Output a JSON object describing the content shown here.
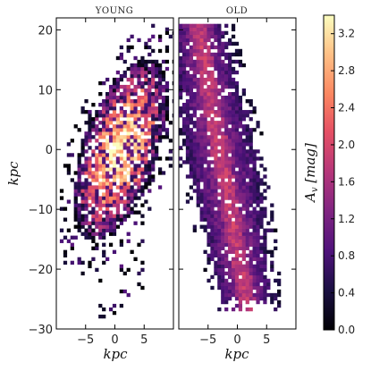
{
  "chart_data": {
    "type": "heatmap",
    "panels": [
      {
        "title": "YOUNG",
        "xlabel": "kpc",
        "ylabel": "kpc",
        "xlim": [
          -10,
          10
        ],
        "ylim": [
          -30,
          22
        ],
        "xticks": [
          -5,
          0,
          5
        ],
        "yticks": [
          -30,
          -20,
          -10,
          0,
          10,
          20
        ],
        "xtick_labels": [
          "−5",
          "0",
          "5"
        ],
        "ytick_labels": [
          "−30",
          "−20",
          "−10",
          "0",
          "10",
          "20"
        ],
        "value_range_approx": [
          0.2,
          3.4
        ]
      },
      {
        "title": "OLD",
        "xlabel": "kpc",
        "xlim": [
          -10,
          10
        ],
        "ylim": [
          -30,
          22
        ],
        "xticks": [
          -5,
          0,
          5
        ],
        "xtick_labels": [
          "−5",
          "0",
          "5"
        ],
        "value_range_approx": [
          0.2,
          1.8
        ]
      }
    ],
    "colorbar": {
      "label": "A_v [mag]",
      "label_text": "Av [mag]",
      "colormap": "magma",
      "range": [
        0.0,
        3.4
      ],
      "ticks": [
        0.0,
        0.4,
        0.8,
        1.2,
        1.6,
        2.0,
        2.4,
        2.8,
        3.2
      ],
      "tick_labels": [
        "0.0",
        "0.4",
        "0.8",
        "1.2",
        "1.6",
        "2.0",
        "2.4",
        "2.8",
        "3.2"
      ]
    }
  }
}
